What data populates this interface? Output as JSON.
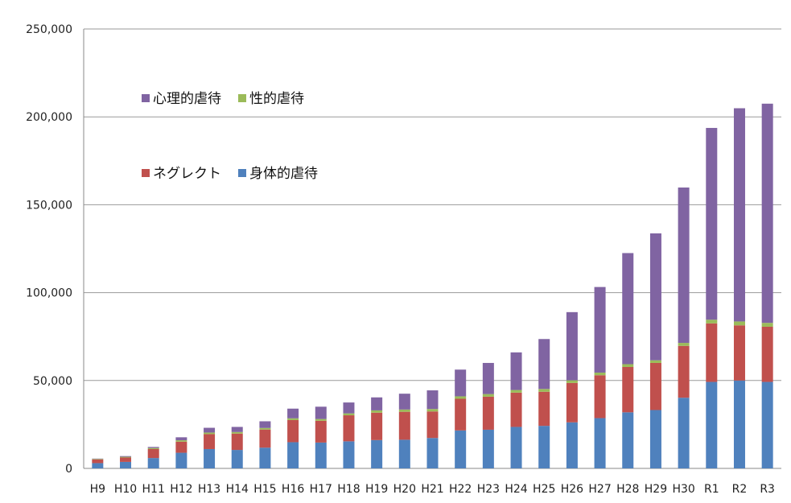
{
  "chart_data": {
    "type": "bar",
    "stacked": true,
    "categories": [
      "H9",
      "H10",
      "H11",
      "H12",
      "H13",
      "H14",
      "H15",
      "H16",
      "H17",
      "H18",
      "H19",
      "H20",
      "H21",
      "H22",
      "H23",
      "H24",
      "H25",
      "H26",
      "H27",
      "H28",
      "H29",
      "H30",
      "R1",
      "R2",
      "R3"
    ],
    "series": [
      {
        "name": "身体的虐待",
        "color": "#4F81BD",
        "values": [
          3000,
          3700,
          5900,
          8900,
          11000,
          10500,
          11800,
          14900,
          14700,
          15400,
          16100,
          16300,
          17300,
          21600,
          22000,
          23600,
          24200,
          26200,
          28600,
          31900,
          33200,
          40200,
          49200,
          50000,
          49200
        ]
      },
      {
        "name": "ネグレクト",
        "color": "#C0504D",
        "values": [
          2100,
          2500,
          5100,
          6300,
          8500,
          9300,
          10300,
          12600,
          12400,
          14800,
          15600,
          15900,
          15100,
          18000,
          18800,
          19500,
          19400,
          22400,
          24400,
          25800,
          26800,
          29500,
          33300,
          31400,
          31400
        ]
      },
      {
        "name": "性的虐待",
        "color": "#9BBB59",
        "values": [
          300,
          400,
          600,
          800,
          900,
          900,
          900,
          1000,
          1000,
          1100,
          1300,
          1300,
          1400,
          1400,
          1500,
          1500,
          1600,
          1500,
          1500,
          1600,
          1500,
          1700,
          2100,
          2200,
          2200
        ]
      },
      {
        "name": "心理的虐待",
        "color": "#8064A2",
        "values": [
          200,
          400,
          600,
          1700,
          2700,
          2900,
          3800,
          5500,
          7000,
          6200,
          7400,
          9000,
          10600,
          15200,
          17700,
          21400,
          28400,
          38800,
          48700,
          63200,
          72200,
          88400,
          109100,
          121300,
          124700
        ]
      }
    ],
    "y_ticks": [
      "0",
      "50,000",
      "100,000",
      "150,000",
      "200,000",
      "250,000"
    ],
    "ylim": [
      0,
      250000
    ],
    "grid": true,
    "legend_position": "top-left, two rows"
  }
}
